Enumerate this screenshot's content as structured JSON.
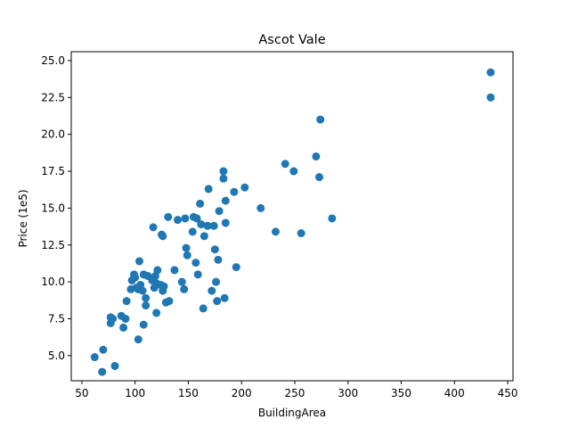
{
  "chart_data": {
    "type": "scatter",
    "title": "Ascot Vale",
    "xlabel": "BuildingArea",
    "ylabel": "Price (1e5)",
    "xlim": [
      40,
      455
    ],
    "ylim": [
      3.3,
      25.6
    ],
    "xticks": [
      50,
      100,
      150,
      200,
      250,
      300,
      350,
      400,
      450
    ],
    "yticks": [
      5.0,
      7.5,
      10.0,
      12.5,
      15.0,
      17.5,
      20.0,
      22.5,
      25.0
    ],
    "xtick_labels": [
      "50",
      "100",
      "150",
      "200",
      "250",
      "300",
      "350",
      "400",
      "450"
    ],
    "ytick_labels": [
      "5.0",
      "7.5",
      "10.0",
      "12.5",
      "15.0",
      "17.5",
      "20.0",
      "22.5",
      "25.0"
    ],
    "grid": false,
    "marker_color": "#1f77b4",
    "points": [
      {
        "x": 62,
        "y": 4.9
      },
      {
        "x": 69,
        "y": 3.9
      },
      {
        "x": 70,
        "y": 5.4
      },
      {
        "x": 77,
        "y": 7.2
      },
      {
        "x": 77,
        "y": 7.6
      },
      {
        "x": 79,
        "y": 7.5
      },
      {
        "x": 81,
        "y": 4.3
      },
      {
        "x": 87,
        "y": 7.7
      },
      {
        "x": 89,
        "y": 6.9
      },
      {
        "x": 91,
        "y": 7.5
      },
      {
        "x": 92,
        "y": 8.7
      },
      {
        "x": 96,
        "y": 9.5
      },
      {
        "x": 97,
        "y": 10.1
      },
      {
        "x": 99,
        "y": 10.5
      },
      {
        "x": 100,
        "y": 10.3
      },
      {
        "x": 101,
        "y": 9.6
      },
      {
        "x": 103,
        "y": 9.5
      },
      {
        "x": 103,
        "y": 6.1
      },
      {
        "x": 104,
        "y": 11.4
      },
      {
        "x": 105,
        "y": 9.8
      },
      {
        "x": 107,
        "y": 9.4
      },
      {
        "x": 108,
        "y": 7.1
      },
      {
        "x": 108,
        "y": 10.5
      },
      {
        "x": 110,
        "y": 8.9
      },
      {
        "x": 110,
        "y": 8.4
      },
      {
        "x": 112,
        "y": 10.4
      },
      {
        "x": 116,
        "y": 10.1
      },
      {
        "x": 117,
        "y": 13.7
      },
      {
        "x": 118,
        "y": 9.6
      },
      {
        "x": 119,
        "y": 10.4
      },
      {
        "x": 120,
        "y": 9.9
      },
      {
        "x": 120,
        "y": 7.9
      },
      {
        "x": 121,
        "y": 10.8
      },
      {
        "x": 124,
        "y": 9.8
      },
      {
        "x": 125,
        "y": 13.2
      },
      {
        "x": 126,
        "y": 13.1
      },
      {
        "x": 126,
        "y": 9.4
      },
      {
        "x": 127,
        "y": 9.7
      },
      {
        "x": 129,
        "y": 8.6
      },
      {
        "x": 131,
        "y": 14.4
      },
      {
        "x": 132,
        "y": 8.7
      },
      {
        "x": 137,
        "y": 10.8
      },
      {
        "x": 140,
        "y": 14.2
      },
      {
        "x": 144,
        "y": 10.0
      },
      {
        "x": 146,
        "y": 9.5
      },
      {
        "x": 147,
        "y": 14.3
      },
      {
        "x": 148,
        "y": 12.3
      },
      {
        "x": 149,
        "y": 11.8
      },
      {
        "x": 154,
        "y": 13.4
      },
      {
        "x": 155,
        "y": 14.4
      },
      {
        "x": 157,
        "y": 11.3
      },
      {
        "x": 158,
        "y": 14.3
      },
      {
        "x": 159,
        "y": 10.5
      },
      {
        "x": 161,
        "y": 15.3
      },
      {
        "x": 162,
        "y": 13.9
      },
      {
        "x": 164,
        "y": 8.2
      },
      {
        "x": 165,
        "y": 13.1
      },
      {
        "x": 168,
        "y": 13.8
      },
      {
        "x": 169,
        "y": 16.3
      },
      {
        "x": 172,
        "y": 9.4
      },
      {
        "x": 174,
        "y": 13.8
      },
      {
        "x": 175,
        "y": 12.2
      },
      {
        "x": 176,
        "y": 10.0
      },
      {
        "x": 177,
        "y": 8.7
      },
      {
        "x": 178,
        "y": 11.5
      },
      {
        "x": 179,
        "y": 14.8
      },
      {
        "x": 183,
        "y": 17.0
      },
      {
        "x": 183,
        "y": 17.5
      },
      {
        "x": 184,
        "y": 8.9
      },
      {
        "x": 185,
        "y": 15.5
      },
      {
        "x": 185,
        "y": 14.0
      },
      {
        "x": 193,
        "y": 16.1
      },
      {
        "x": 195,
        "y": 11.0
      },
      {
        "x": 203,
        "y": 16.4
      },
      {
        "x": 218,
        "y": 15.0
      },
      {
        "x": 232,
        "y": 13.4
      },
      {
        "x": 241,
        "y": 18.0
      },
      {
        "x": 249,
        "y": 17.5
      },
      {
        "x": 256,
        "y": 13.3
      },
      {
        "x": 270,
        "y": 18.5
      },
      {
        "x": 273,
        "y": 17.1
      },
      {
        "x": 274,
        "y": 21.0
      },
      {
        "x": 285,
        "y": 14.3
      },
      {
        "x": 434,
        "y": 24.2
      },
      {
        "x": 434,
        "y": 22.5
      }
    ]
  }
}
